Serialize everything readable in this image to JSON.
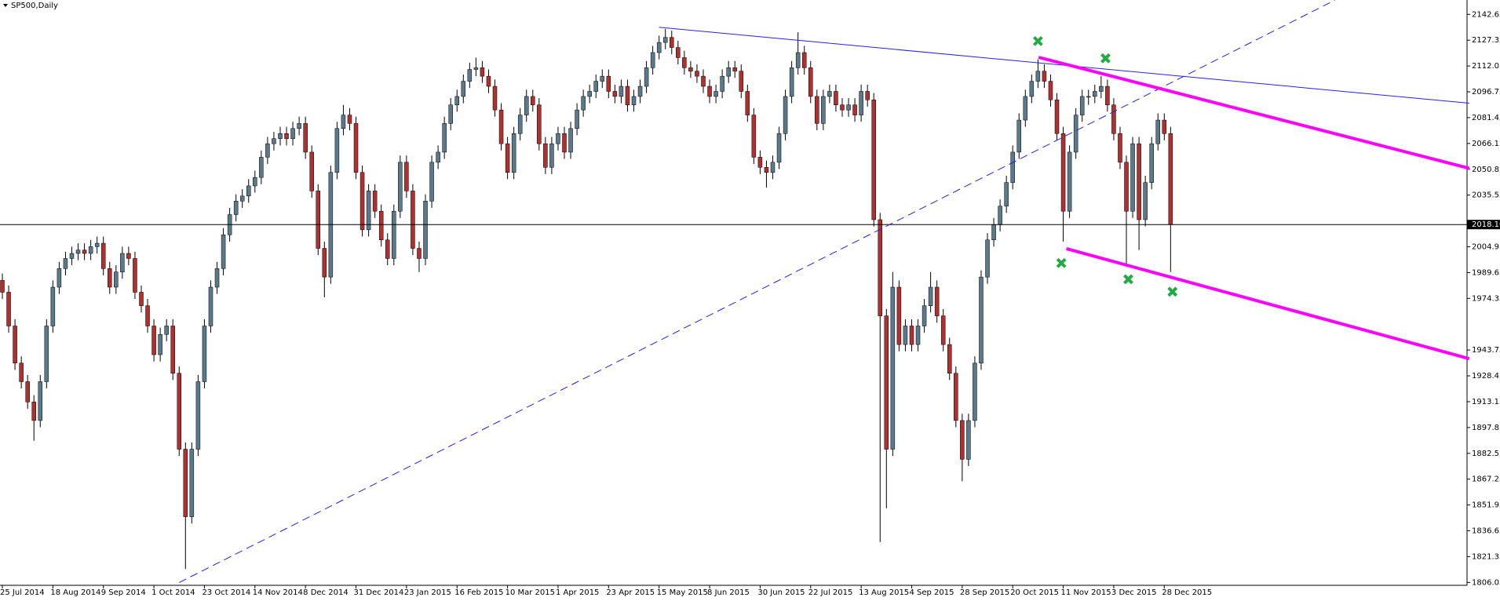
{
  "chart_data": {
    "type": "candlestick",
    "title": "SP500,Daily",
    "bull_color": "#5a7a8c",
    "bear_color": "#b03030",
    "wick_color": "#000000",
    "ylim": [
      1804.35,
      2151.15
    ],
    "yticks": [
      2142.65,
      2127.35,
      2112.05,
      2096.75,
      2081.45,
      2066.15,
      2050.85,
      2035.55,
      2004.95,
      1989.65,
      1974.35,
      1943.75,
      1928.45,
      1913.15,
      1897.85,
      1882.55,
      1867.25,
      1851.95,
      1836.65,
      1821.35,
      1806.05
    ],
    "current_price": {
      "value": 2018.1,
      "label": "2018.10"
    },
    "categories": [
      "25 Jul 2014",
      null,
      null,
      null,
      null,
      null,
      null,
      null,
      "18 Aug 2014",
      null,
      null,
      null,
      null,
      null,
      null,
      null,
      "9 Sep 2014",
      null,
      null,
      null,
      null,
      null,
      null,
      null,
      "1 Oct 2014",
      null,
      null,
      null,
      null,
      null,
      null,
      null,
      "23 Oct 2014",
      null,
      null,
      null,
      null,
      null,
      null,
      null,
      "14 Nov 2014",
      null,
      null,
      null,
      null,
      null,
      null,
      null,
      "8 Dec 2014",
      null,
      null,
      null,
      null,
      null,
      null,
      null,
      "31 Dec 2014",
      null,
      null,
      null,
      null,
      null,
      null,
      null,
      "23 Jan 2015",
      null,
      null,
      null,
      null,
      null,
      null,
      null,
      "16 Feb 2015",
      null,
      null,
      null,
      null,
      null,
      null,
      null,
      "10 Mar 2015",
      null,
      null,
      null,
      null,
      null,
      null,
      null,
      "1 Apr 2015",
      null,
      null,
      null,
      null,
      null,
      null,
      null,
      "23 Apr 2015",
      null,
      null,
      null,
      null,
      null,
      null,
      null,
      "15 May 2015",
      null,
      null,
      null,
      null,
      null,
      null,
      null,
      "8 Jun 2015",
      null,
      null,
      null,
      null,
      null,
      null,
      null,
      "30 Jun 2015",
      null,
      null,
      null,
      null,
      null,
      null,
      null,
      "22 Jul 2015",
      null,
      null,
      null,
      null,
      null,
      null,
      null,
      "13 Aug 2015",
      null,
      null,
      null,
      null,
      null,
      null,
      null,
      "4 Sep 2015",
      null,
      null,
      null,
      null,
      null,
      null,
      null,
      "28 Sep 2015",
      null,
      null,
      null,
      null,
      null,
      null,
      null,
      "20 Oct 2015",
      null,
      null,
      null,
      null,
      null,
      null,
      null,
      "11 Nov 2015",
      null,
      null,
      null,
      null,
      null,
      null,
      null,
      "3 Dec 2015",
      null,
      null,
      null,
      null,
      null,
      null,
      null,
      "28 Dec 2015",
      null
    ],
    "ohlc": [
      [
        1985,
        1989,
        1974,
        1978
      ],
      [
        1978,
        1982,
        1954,
        1958
      ],
      [
        1958,
        1962,
        1932,
        1936
      ],
      [
        1936,
        1940,
        1921,
        1925
      ],
      [
        1925,
        1929,
        1909,
        1913
      ],
      [
        1913,
        1917,
        1890,
        1902
      ],
      [
        1902,
        1929,
        1898,
        1925
      ],
      [
        1925,
        1962,
        1921,
        1958
      ],
      [
        1958,
        1985,
        1954,
        1981
      ],
      [
        1981,
        1996,
        1977,
        1992
      ],
      [
        1992,
        2002,
        1988,
        1998
      ],
      [
        1998,
        2005,
        1994,
        2001
      ],
      [
        2001,
        2007,
        1997,
        2003
      ],
      [
        2003,
        2007,
        1997,
        2001
      ],
      [
        2001,
        2009,
        1997,
        2005
      ],
      [
        2005,
        2011,
        2001,
        2007
      ],
      [
        2007,
        2011,
        1988,
        1992
      ],
      [
        1992,
        1996,
        1977,
        1981
      ],
      [
        1981,
        1994,
        1977,
        1990
      ],
      [
        1990,
        2005,
        1986,
        2001
      ],
      [
        2001,
        2005,
        1994,
        1998
      ],
      [
        1998,
        2002,
        1974,
        1978
      ],
      [
        1978,
        1982,
        1966,
        1970
      ],
      [
        1970,
        1974,
        1954,
        1958
      ],
      [
        1958,
        1962,
        1937,
        1941
      ],
      [
        1941,
        1957,
        1937,
        1953
      ],
      [
        1953,
        1962,
        1949,
        1958
      ],
      [
        1958,
        1962,
        1926,
        1930
      ],
      [
        1930,
        1934,
        1881,
        1885
      ],
      [
        1885,
        1889,
        1814,
        1845
      ],
      [
        1845,
        1889,
        1841,
        1885
      ],
      [
        1885,
        1929,
        1881,
        1925
      ],
      [
        1925,
        1962,
        1921,
        1958
      ],
      [
        1958,
        1985,
        1954,
        1981
      ],
      [
        1981,
        1996,
        1977,
        1992
      ],
      [
        1992,
        2016,
        1988,
        2012
      ],
      [
        2012,
        2028,
        2008,
        2024
      ],
      [
        2024,
        2036,
        2020,
        2032
      ],
      [
        2032,
        2039,
        2028,
        2035
      ],
      [
        2035,
        2045,
        2031,
        2041
      ],
      [
        2041,
        2050,
        2037,
        2046
      ],
      [
        2046,
        2062,
        2042,
        2058
      ],
      [
        2058,
        2070,
        2054,
        2066
      ],
      [
        2066,
        2073,
        2062,
        2069
      ],
      [
        2069,
        2076,
        2065,
        2072
      ],
      [
        2072,
        2076,
        2065,
        2069
      ],
      [
        2069,
        2079,
        2065,
        2075
      ],
      [
        2075,
        2082,
        2071,
        2078
      ],
      [
        2078,
        2082,
        2057,
        2061
      ],
      [
        2061,
        2065,
        2034,
        2038
      ],
      [
        2038,
        2042,
        2000,
        2004
      ],
      [
        2004,
        2008,
        1975,
        1987
      ],
      [
        1987,
        2053,
        1983,
        2049
      ],
      [
        2049,
        2079,
        2045,
        2075
      ],
      [
        2075,
        2089,
        2071,
        2083
      ],
      [
        2083,
        2087,
        2074,
        2078
      ],
      [
        2078,
        2082,
        2045,
        2049
      ],
      [
        2049,
        2053,
        2011,
        2015
      ],
      [
        2015,
        2042,
        2011,
        2038
      ],
      [
        2038,
        2042,
        2022,
        2026
      ],
      [
        2026,
        2030,
        2005,
        2009
      ],
      [
        2009,
        2013,
        1994,
        1998
      ],
      [
        1998,
        2030,
        1994,
        2026
      ],
      [
        2026,
        2059,
        2022,
        2055
      ],
      [
        2055,
        2059,
        2034,
        2038
      ],
      [
        2038,
        2042,
        2000,
        2004
      ],
      [
        2004,
        2008,
        1990,
        1998
      ],
      [
        1998,
        2036,
        1994,
        2032
      ],
      [
        2032,
        2059,
        2028,
        2055
      ],
      [
        2055,
        2065,
        2051,
        2061
      ],
      [
        2061,
        2082,
        2057,
        2078
      ],
      [
        2078,
        2093,
        2074,
        2089
      ],
      [
        2089,
        2098,
        2085,
        2094
      ],
      [
        2094,
        2107,
        2090,
        2103
      ],
      [
        2103,
        2114,
        2099,
        2110
      ],
      [
        2110,
        2117,
        2106,
        2111
      ],
      [
        2111,
        2115,
        2102,
        2106
      ],
      [
        2106,
        2110,
        2096,
        2100
      ],
      [
        2100,
        2104,
        2082,
        2086
      ],
      [
        2086,
        2090,
        2062,
        2066
      ],
      [
        2066,
        2070,
        2045,
        2049
      ],
      [
        2049,
        2076,
        2045,
        2072
      ],
      [
        2072,
        2087,
        2068,
        2083
      ],
      [
        2083,
        2098,
        2079,
        2094
      ],
      [
        2094,
        2098,
        2085,
        2089
      ],
      [
        2089,
        2093,
        2062,
        2066
      ],
      [
        2066,
        2070,
        2048,
        2052
      ],
      [
        2052,
        2070,
        2048,
        2066
      ],
      [
        2066,
        2076,
        2062,
        2072
      ],
      [
        2072,
        2076,
        2057,
        2061
      ],
      [
        2061,
        2079,
        2057,
        2075
      ],
      [
        2075,
        2090,
        2071,
        2086
      ],
      [
        2086,
        2098,
        2082,
        2094
      ],
      [
        2094,
        2101,
        2090,
        2097
      ],
      [
        2097,
        2107,
        2093,
        2103
      ],
      [
        2103,
        2110,
        2099,
        2106
      ],
      [
        2106,
        2110,
        2093,
        2097
      ],
      [
        2097,
        2101,
        2090,
        2094
      ],
      [
        2094,
        2104,
        2090,
        2100
      ],
      [
        2100,
        2104,
        2085,
        2089
      ],
      [
        2089,
        2098,
        2085,
        2094
      ],
      [
        2094,
        2104,
        2090,
        2100
      ],
      [
        2100,
        2115,
        2096,
        2111
      ],
      [
        2111,
        2124,
        2107,
        2120
      ],
      [
        2120,
        2130,
        2116,
        2126
      ],
      [
        2126,
        2134,
        2122,
        2129
      ],
      [
        2129,
        2133,
        2119,
        2123
      ],
      [
        2123,
        2127,
        2113,
        2117
      ],
      [
        2117,
        2121,
        2107,
        2111
      ],
      [
        2111,
        2115,
        2105,
        2109
      ],
      [
        2109,
        2113,
        2102,
        2106
      ],
      [
        2106,
        2110,
        2096,
        2100
      ],
      [
        2100,
        2104,
        2090,
        2094
      ],
      [
        2094,
        2101,
        2090,
        2097
      ],
      [
        2097,
        2110,
        2093,
        2106
      ],
      [
        2106,
        2115,
        2102,
        2111
      ],
      [
        2111,
        2115,
        2105,
        2109
      ],
      [
        2109,
        2113,
        2093,
        2097
      ],
      [
        2097,
        2101,
        2079,
        2083
      ],
      [
        2083,
        2087,
        2054,
        2058
      ],
      [
        2058,
        2062,
        2048,
        2052
      ],
      [
        2052,
        2056,
        2040,
        2049
      ],
      [
        2049,
        2059,
        2045,
        2055
      ],
      [
        2055,
        2076,
        2051,
        2072
      ],
      [
        2072,
        2098,
        2068,
        2094
      ],
      [
        2094,
        2115,
        2090,
        2111
      ],
      [
        2111,
        2132,
        2107,
        2120
      ],
      [
        2120,
        2124,
        2107,
        2111
      ],
      [
        2111,
        2115,
        2090,
        2094
      ],
      [
        2094,
        2098,
        2074,
        2078
      ],
      [
        2078,
        2098,
        2074,
        2094
      ],
      [
        2094,
        2101,
        2090,
        2097
      ],
      [
        2097,
        2101,
        2085,
        2089
      ],
      [
        2089,
        2093,
        2082,
        2086
      ],
      [
        2086,
        2093,
        2082,
        2089
      ],
      [
        2089,
        2093,
        2079,
        2083
      ],
      [
        2083,
        2101,
        2079,
        2097
      ],
      [
        2097,
        2101,
        2088,
        2092
      ],
      [
        2092,
        2096,
        2017,
        2021
      ],
      [
        2021,
        2025,
        1830,
        1964
      ],
      [
        1964,
        1968,
        1850,
        1885
      ],
      [
        1885,
        1990,
        1881,
        1981
      ],
      [
        1981,
        1985,
        1943,
        1947
      ],
      [
        1947,
        1962,
        1943,
        1958
      ],
      [
        1958,
        1962,
        1943,
        1947
      ],
      [
        1947,
        1962,
        1943,
        1958
      ],
      [
        1958,
        1974,
        1954,
        1970
      ],
      [
        1970,
        1990,
        1966,
        1981
      ],
      [
        1981,
        1985,
        1960,
        1964
      ],
      [
        1964,
        1968,
        1943,
        1947
      ],
      [
        1947,
        1951,
        1926,
        1930
      ],
      [
        1930,
        1934,
        1898,
        1902
      ],
      [
        1902,
        1906,
        1866,
        1879
      ],
      [
        1879,
        1906,
        1875,
        1902
      ],
      [
        1902,
        1940,
        1898,
        1936
      ],
      [
        1936,
        1991,
        1932,
        1987
      ],
      [
        1987,
        2013,
        1983,
        2009
      ],
      [
        2009,
        2022,
        2005,
        2018
      ],
      [
        2018,
        2033,
        2014,
        2029
      ],
      [
        2029,
        2047,
        2025,
        2043
      ],
      [
        2043,
        2065,
        2039,
        2061
      ],
      [
        2061,
        2084,
        2057,
        2080
      ],
      [
        2080,
        2098,
        2076,
        2094
      ],
      [
        2094,
        2107,
        2090,
        2103
      ],
      [
        2103,
        2116,
        2099,
        2109
      ],
      [
        2109,
        2113,
        2099,
        2103
      ],
      [
        2103,
        2107,
        2088,
        2092
      ],
      [
        2092,
        2096,
        2068,
        2072
      ],
      [
        2072,
        2076,
        2008,
        2026
      ],
      [
        2026,
        2065,
        2022,
        2061
      ],
      [
        2061,
        2087,
        2057,
        2083
      ],
      [
        2083,
        2098,
        2079,
        2094
      ],
      [
        2094,
        2098,
        2089,
        2094
      ],
      [
        2094,
        2101,
        2090,
        2097
      ],
      [
        2097,
        2106,
        2093,
        2100
      ],
      [
        2100,
        2104,
        2085,
        2089
      ],
      [
        2089,
        2093,
        2068,
        2072
      ],
      [
        2072,
        2076,
        2051,
        2055
      ],
      [
        2055,
        2059,
        1993,
        2026
      ],
      [
        2026,
        2070,
        2022,
        2066
      ],
      [
        2066,
        2070,
        2003,
        2021
      ],
      [
        2021,
        2047,
        2017,
        2043
      ],
      [
        2043,
        2070,
        2039,
        2066
      ],
      [
        2066,
        2084,
        2062,
        2080
      ],
      [
        2080,
        2084,
        2068,
        2072
      ],
      [
        2072,
        2076,
        1990,
        2018.1
      ]
    ],
    "trendlines": [
      {
        "color": "#2222ee",
        "style": "solid",
        "points": [
          [
            104,
            2135
          ],
          [
            232.3,
            2090
          ]
        ]
      },
      {
        "color": "#2222ee",
        "style": "dashed",
        "points": [
          [
            28,
            1806
          ],
          [
            211,
            2151
          ]
        ]
      },
      {
        "color": "#ff00ff",
        "style": "thick",
        "points": [
          [
            164.1,
            2117.2
          ],
          [
            232.3,
            2051.4
          ]
        ]
      },
      {
        "color": "#ff00ff",
        "style": "thick",
        "points": [
          [
            168.5,
            2003.8
          ],
          [
            232.3,
            1938.6
          ]
        ]
      }
    ],
    "markers": {
      "color": "#22aa44",
      "points": [
        [
          164,
          2126.8
        ],
        [
          174.7,
          2116.6
        ],
        [
          167.7,
          1995.3
        ],
        [
          178.3,
          1985.7
        ],
        [
          185.3,
          1978.3
        ]
      ]
    }
  }
}
